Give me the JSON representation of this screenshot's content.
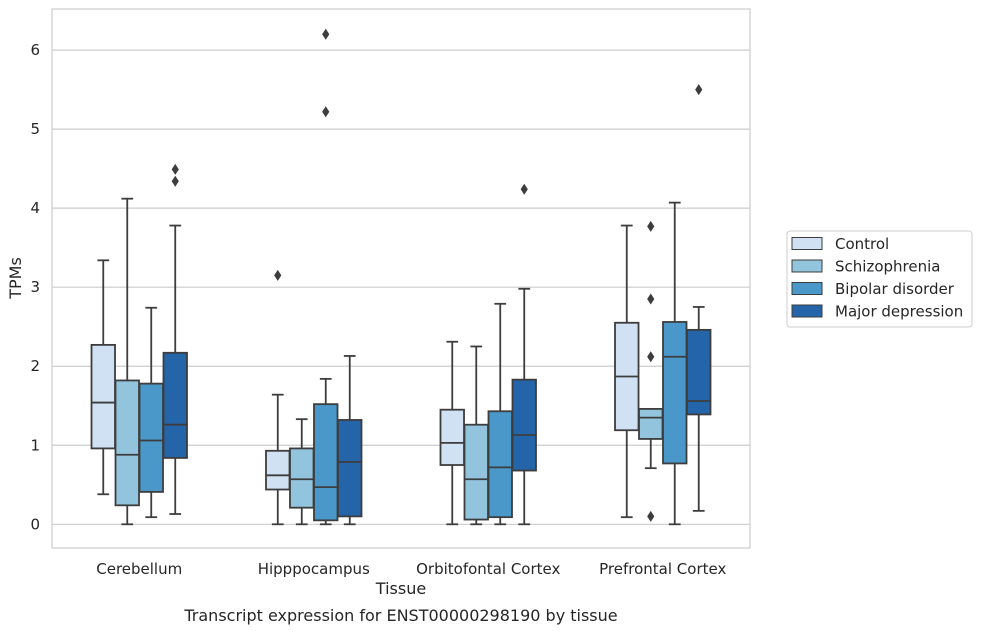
{
  "chart_data": {
    "type": "box",
    "caption": "Transcript expression for ENST00000298190 by tissue",
    "xlabel": "Tissue",
    "ylabel": "TPMs",
    "ylim": [
      -0.3,
      6.52
    ],
    "yticks": [
      "0",
      "1",
      "2",
      "3",
      "4",
      "5",
      "6"
    ],
    "grid": "horizontal",
    "legend_position": "right",
    "categories": [
      "Cerebellum",
      "Hipppocampus",
      "Orbitofontal Cortex",
      "Prefrontal Cortex"
    ],
    "series": [
      {
        "name": "Control",
        "color": "#cfe1f2",
        "boxes": [
          {
            "whisker_low": 0.38,
            "q1": 0.96,
            "median": 1.54,
            "q3": 2.27,
            "whisker_high": 3.34,
            "outliers": []
          },
          {
            "whisker_low": 0.0,
            "q1": 0.44,
            "median": 0.62,
            "q3": 0.93,
            "whisker_high": 1.64,
            "outliers": [
              3.15
            ]
          },
          {
            "whisker_low": 0.0,
            "q1": 0.75,
            "median": 1.03,
            "q3": 1.45,
            "whisker_high": 2.31,
            "outliers": []
          },
          {
            "whisker_low": 0.09,
            "q1": 1.19,
            "median": 1.87,
            "q3": 2.55,
            "whisker_high": 3.78,
            "outliers": []
          }
        ]
      },
      {
        "name": "Schizophrenia",
        "color": "#93c4de",
        "boxes": [
          {
            "whisker_low": 0.0,
            "q1": 0.24,
            "median": 0.88,
            "q3": 1.82,
            "whisker_high": 4.12,
            "outliers": []
          },
          {
            "whisker_low": 0.0,
            "q1": 0.21,
            "median": 0.57,
            "q3": 0.96,
            "whisker_high": 1.33,
            "outliers": []
          },
          {
            "whisker_low": 0.0,
            "q1": 0.06,
            "median": 0.57,
            "q3": 1.26,
            "whisker_high": 2.25,
            "outliers": []
          },
          {
            "whisker_low": 0.71,
            "q1": 1.08,
            "median": 1.35,
            "q3": 1.46,
            "whisker_high": 1.46,
            "outliers": [
              3.77,
              2.85,
              2.12,
              0.1
            ]
          }
        ]
      },
      {
        "name": "Bipolar disorder",
        "color": "#4a98c9",
        "boxes": [
          {
            "whisker_low": 0.09,
            "q1": 0.41,
            "median": 1.06,
            "q3": 1.78,
            "whisker_high": 2.74,
            "outliers": []
          },
          {
            "whisker_low": 0.0,
            "q1": 0.05,
            "median": 0.47,
            "q3": 1.52,
            "whisker_high": 1.84,
            "outliers": [
              5.22,
              6.2
            ]
          },
          {
            "whisker_low": 0.0,
            "q1": 0.09,
            "median": 0.72,
            "q3": 1.43,
            "whisker_high": 2.79,
            "outliers": []
          },
          {
            "whisker_low": 0.0,
            "q1": 0.77,
            "median": 2.12,
            "q3": 2.56,
            "whisker_high": 4.07,
            "outliers": []
          }
        ]
      },
      {
        "name": "Major depression",
        "color": "#2464a8",
        "boxes": [
          {
            "whisker_low": 0.13,
            "q1": 0.84,
            "median": 1.26,
            "q3": 2.17,
            "whisker_high": 3.78,
            "outliers": [
              4.34,
              4.49
            ]
          },
          {
            "whisker_low": 0.0,
            "q1": 0.1,
            "median": 0.79,
            "q3": 1.32,
            "whisker_high": 2.13,
            "outliers": []
          },
          {
            "whisker_low": 0.0,
            "q1": 0.68,
            "median": 1.13,
            "q3": 1.83,
            "whisker_high": 2.98,
            "outliers": [
              4.24
            ]
          },
          {
            "whisker_low": 0.17,
            "q1": 1.39,
            "median": 1.56,
            "q3": 2.46,
            "whisker_high": 2.75,
            "outliers": [
              5.5
            ]
          }
        ]
      }
    ]
  }
}
